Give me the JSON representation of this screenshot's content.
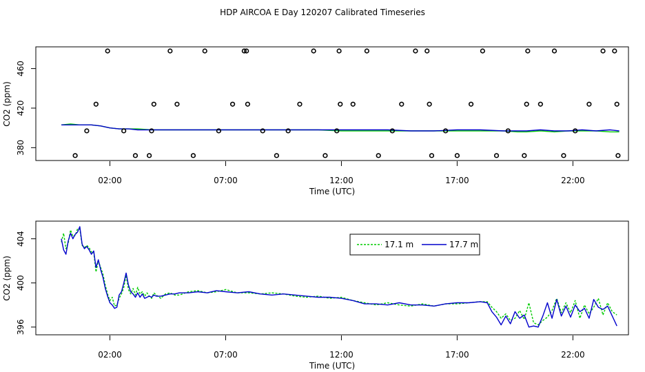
{
  "chart_data": [
    {
      "type": "scatter",
      "title": "HDP AIRCOA E  Day 120207  Calibrated Timeseries",
      "xlabel": "Time (UTC)",
      "ylabel": "CO2 (ppm)",
      "xlim": [
        -1.2,
        24.4
      ],
      "ylim": [
        367,
        482
      ],
      "x_ticks": [
        2,
        7,
        12,
        17,
        22
      ],
      "x_tick_labels": [
        "02:00",
        "07:00",
        "12:00",
        "17:00",
        "22:00"
      ],
      "y_ticks": [
        380,
        420,
        460
      ],
      "y_tick_labels": [
        "380",
        "420",
        "460"
      ],
      "grid": false,
      "series": [
        {
          "color": "#00cc00",
          "x": [
            -0.1,
            0.3,
            0.7,
            1.2,
            1.6,
            2.0,
            2.4,
            2.8,
            3.2,
            3.8,
            4.4,
            5.0,
            6.0,
            7.0,
            8.0,
            9.0,
            10.0,
            11.0,
            12.0,
            13.0,
            14.0,
            15.0,
            16.0,
            17.0,
            18.0,
            19.0,
            19.6,
            20.0,
            20.6,
            21.2,
            21.8,
            22.4,
            23.0,
            23.6,
            24.0
          ],
          "y": [
            403,
            404,
            403,
            403,
            402,
            400,
            399,
            399,
            399,
            398,
            398,
            398,
            398,
            398,
            398,
            398,
            398,
            398,
            397,
            397,
            397,
            397,
            397,
            397,
            397,
            397,
            396,
            396,
            397,
            396,
            397,
            397,
            397,
            396,
            396
          ]
        },
        {
          "color": "#0000cc",
          "x": [
            -0.1,
            0.3,
            0.7,
            1.2,
            1.6,
            2.0,
            2.4,
            2.8,
            3.2,
            3.8,
            4.4,
            5.0,
            6.0,
            7.0,
            8.0,
            9.0,
            10.0,
            11.0,
            12.0,
            13.0,
            14.0,
            15.0,
            16.0,
            17.0,
            18.0,
            19.0,
            19.6,
            20.0,
            20.6,
            21.2,
            21.8,
            22.4,
            23.0,
            23.6,
            24.0
          ],
          "y": [
            403,
            403,
            403,
            403,
            402,
            400,
            399,
            399,
            398,
            398,
            398,
            398,
            398,
            398,
            398,
            398,
            398,
            398,
            398,
            398,
            398,
            397,
            397,
            398,
            398,
            397,
            397,
            397,
            398,
            397,
            397,
            398,
            397,
            398,
            397
          ]
        }
      ],
      "calibration_points": {
        "x": [
          0.5,
          1.0,
          1.4,
          1.9,
          2.6,
          3.1,
          3.7,
          3.8,
          3.9,
          4.6,
          4.9,
          5.6,
          6.1,
          6.7,
          7.3,
          7.8,
          7.9,
          7.95,
          8.6,
          9.2,
          9.7,
          10.2,
          10.8,
          11.3,
          11.8,
          11.9,
          11.95,
          12.5,
          13.1,
          13.6,
          14.2,
          14.6,
          15.2,
          15.7,
          15.8,
          15.9,
          16.5,
          17.0,
          17.6,
          18.1,
          18.7,
          19.2,
          19.9,
          20.0,
          20.05,
          20.6,
          21.2,
          21.6,
          22.1,
          22.7,
          23.3,
          23.8,
          23.9,
          23.95
        ],
        "y": [
          372,
          397,
          424,
          484,
          397,
          372,
          372,
          397,
          424,
          484,
          424,
          372,
          484,
          397,
          424,
          484,
          484,
          424,
          397,
          372,
          397,
          424,
          484,
          372,
          397,
          484,
          424,
          424,
          484,
          372,
          397,
          424,
          484,
          484,
          424,
          372,
          397,
          372,
          424,
          484,
          372,
          397,
          372,
          424,
          484,
          424,
          484,
          372,
          397,
          424,
          484,
          484,
          424,
          372
        ]
      }
    },
    {
      "type": "line",
      "title": "",
      "xlabel": "Time (UTC)",
      "ylabel": "CO2 (ppm)",
      "xlim": [
        -1.2,
        24.4
      ],
      "ylim": [
        395.3,
        405.6
      ],
      "x_ticks": [
        2,
        7,
        12,
        17,
        22
      ],
      "x_tick_labels": [
        "02:00",
        "07:00",
        "12:00",
        "17:00",
        "22:00"
      ],
      "y_ticks": [
        396,
        400,
        404
      ],
      "y_tick_labels": [
        "396",
        "400",
        "404"
      ],
      "grid": false,
      "legend": "top-right",
      "series": [
        {
          "name": "17.1 m",
          "color": "#00cc00",
          "dash": "3,2",
          "x": [
            -0.1,
            0.0,
            0.1,
            0.2,
            0.3,
            0.4,
            0.5,
            0.6,
            0.7,
            0.8,
            0.9,
            1.0,
            1.1,
            1.2,
            1.3,
            1.4,
            1.5,
            1.6,
            1.7,
            1.8,
            1.9,
            2.0,
            2.1,
            2.2,
            2.3,
            2.4,
            2.5,
            2.6,
            2.7,
            2.8,
            2.9,
            3.0,
            3.1,
            3.2,
            3.3,
            3.4,
            3.5,
            3.6,
            3.7,
            3.8,
            3.9,
            4.0,
            4.2,
            4.4,
            4.6,
            4.8,
            5.0,
            5.4,
            5.8,
            6.2,
            6.6,
            7.0,
            7.5,
            8.0,
            8.5,
            9.0,
            9.5,
            10.0,
            10.5,
            11.0,
            11.5,
            12.0,
            12.5,
            13.0,
            13.5,
            14.0,
            14.5,
            15.0,
            15.5,
            16.0,
            16.5,
            17.0,
            17.5,
            18.0,
            18.3,
            18.5,
            18.7,
            18.9,
            19.1,
            19.3,
            19.5,
            19.7,
            19.9,
            20.1,
            20.3,
            20.5,
            20.7,
            20.9,
            21.1,
            21.3,
            21.5,
            21.7,
            21.9,
            22.1,
            22.3,
            22.5,
            22.7,
            22.9,
            23.1,
            23.3,
            23.5,
            23.7,
            23.9
          ],
          "y": [
            403.7,
            404.5,
            403.1,
            403.6,
            404.8,
            404.2,
            404.3,
            404.9,
            404.9,
            403.4,
            403.2,
            403.4,
            403.2,
            402.8,
            402.8,
            401.0,
            402.0,
            401.4,
            400.8,
            399.8,
            399.0,
            398.4,
            398.7,
            397.9,
            398.0,
            398.6,
            399.0,
            399.6,
            400.7,
            399.4,
            399.0,
            399.5,
            398.9,
            399.6,
            399.0,
            399.2,
            398.8,
            399.1,
            398.8,
            398.6,
            399.1,
            398.9,
            398.6,
            399.0,
            399.1,
            398.9,
            398.9,
            399.2,
            399.3,
            399.1,
            399.2,
            399.4,
            399.1,
            399.1,
            399.0,
            399.1,
            399.0,
            398.8,
            398.7,
            398.8,
            398.6,
            398.7,
            398.4,
            398.2,
            398.0,
            398.2,
            398.0,
            397.9,
            398.1,
            397.9,
            398.1,
            398.1,
            398.2,
            398.3,
            398.3,
            397.8,
            397.4,
            396.8,
            397.2,
            396.6,
            396.8,
            397.5,
            396.7,
            398.2,
            396.4,
            396.2,
            396.6,
            396.9,
            397.5,
            398.6,
            397.3,
            398.2,
            397.3,
            398.4,
            396.8,
            398.0,
            397.2,
            397.8,
            398.6,
            397.1,
            398.2,
            397.4,
            397.1
          ]
        },
        {
          "name": "17.7 m",
          "color": "#0000cc",
          "x": [
            -0.1,
            0.0,
            0.1,
            0.2,
            0.3,
            0.4,
            0.5,
            0.6,
            0.7,
            0.8,
            0.9,
            1.0,
            1.1,
            1.2,
            1.3,
            1.4,
            1.5,
            1.6,
            1.7,
            1.8,
            1.9,
            2.0,
            2.1,
            2.2,
            2.3,
            2.4,
            2.5,
            2.6,
            2.7,
            2.8,
            2.9,
            3.0,
            3.1,
            3.2,
            3.3,
            3.4,
            3.5,
            3.6,
            3.7,
            3.8,
            3.9,
            4.0,
            4.2,
            4.4,
            4.6,
            4.8,
            5.0,
            5.4,
            5.8,
            6.2,
            6.6,
            7.0,
            7.5,
            8.0,
            8.5,
            9.0,
            9.5,
            10.0,
            10.5,
            11.0,
            11.5,
            12.0,
            12.5,
            13.0,
            13.5,
            14.0,
            14.5,
            15.0,
            15.5,
            16.0,
            16.5,
            17.0,
            17.5,
            18.0,
            18.3,
            18.5,
            18.7,
            18.9,
            19.1,
            19.3,
            19.5,
            19.7,
            19.9,
            20.1,
            20.3,
            20.5,
            20.7,
            20.9,
            21.1,
            21.3,
            21.5,
            21.7,
            21.9,
            22.1,
            22.3,
            22.5,
            22.7,
            22.9,
            23.1,
            23.3,
            23.5,
            23.7,
            23.9
          ],
          "y": [
            404.0,
            403.0,
            402.6,
            403.8,
            404.5,
            404.0,
            404.4,
            404.6,
            405.1,
            403.5,
            403.1,
            403.3,
            403.0,
            402.6,
            402.9,
            401.4,
            402.1,
            401.2,
            400.5,
            399.5,
            398.8,
            398.2,
            398.0,
            397.7,
            397.8,
            398.9,
            399.2,
            400.0,
            400.9,
            399.8,
            399.2,
            399.0,
            398.7,
            399.1,
            398.7,
            399.0,
            398.6,
            398.7,
            398.8,
            398.7,
            398.9,
            398.8,
            398.8,
            398.9,
            399.0,
            399.0,
            399.1,
            399.1,
            399.2,
            399.1,
            399.3,
            399.2,
            399.1,
            399.2,
            399.0,
            398.9,
            399.0,
            398.9,
            398.8,
            398.7,
            398.7,
            398.6,
            398.4,
            398.1,
            398.1,
            398.0,
            398.2,
            398.0,
            398.0,
            397.9,
            398.1,
            398.2,
            398.2,
            398.3,
            398.2,
            397.4,
            396.9,
            396.2,
            397.0,
            396.3,
            397.4,
            396.8,
            397.1,
            396.0,
            396.1,
            396.0,
            397.0,
            398.2,
            396.8,
            398.5,
            397.0,
            397.9,
            396.9,
            398.0,
            397.4,
            397.7,
            396.8,
            398.5,
            397.8,
            397.6,
            397.9,
            397.0,
            396.1
          ]
        }
      ]
    }
  ]
}
